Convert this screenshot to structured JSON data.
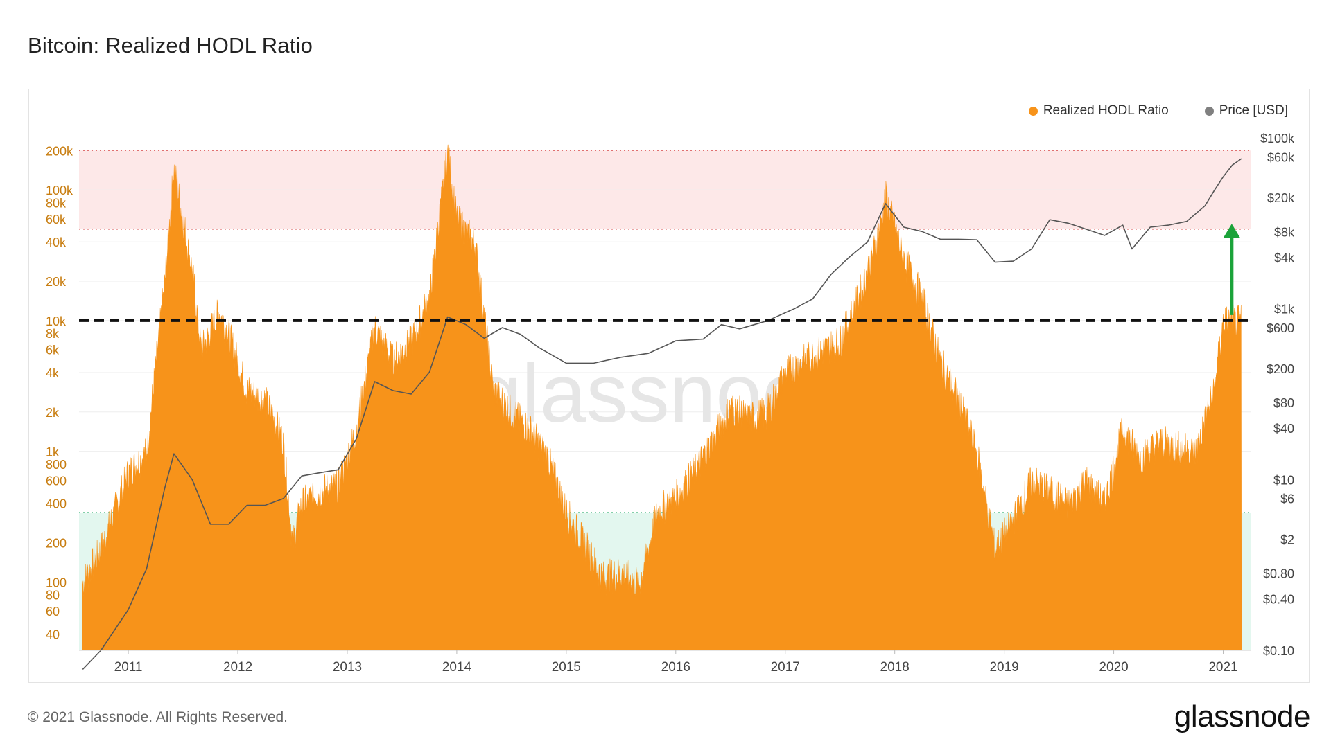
{
  "title": "Bitcoin: Realized HODL Ratio",
  "footer": "© 2021 Glassnode. All Rights Reserved.",
  "brand": "glassnode",
  "watermark": "glassnode",
  "colors": {
    "hodl": "#f7931a",
    "price": "#808080",
    "upper_band": "#fde8e8",
    "lower_band": "#e3f7ef",
    "arrow": "#1ba33a",
    "threshold_line": "#111111"
  },
  "chart_data": {
    "type": "area",
    "title": "Bitcoin: Realized HODL Ratio",
    "x_ticks": [
      "2011",
      "2012",
      "2013",
      "2014",
      "2015",
      "2016",
      "2017",
      "2018",
      "2019",
      "2020",
      "2021"
    ],
    "y_left": {
      "scale": "log",
      "range": [
        30,
        250000
      ],
      "tick_values": [
        40,
        60,
        80,
        100,
        200,
        400,
        600,
        800,
        1000,
        2000,
        4000,
        6000,
        8000,
        10000,
        20000,
        40000,
        60000,
        80000,
        100000,
        200000
      ],
      "tick_labels": [
        "40",
        "60",
        "80",
        "100",
        "200",
        "400",
        "600",
        "800",
        "1k",
        "2k",
        "4k",
        "6k",
        "8k",
        "10k",
        "20k",
        "40k",
        "60k",
        "80k",
        "100k",
        "200k"
      ]
    },
    "y_right": {
      "scale": "log",
      "range": [
        0.1,
        100000
      ],
      "tick_values": [
        0.1,
        0.4,
        0.8,
        2,
        6,
        10,
        40,
        80,
        200,
        600,
        1000,
        4000,
        8000,
        20000,
        60000,
        100000
      ],
      "tick_labels": [
        "$0.10",
        "$0.40",
        "$0.80",
        "$2",
        "$6",
        "$10",
        "$40",
        "$80",
        "$200",
        "$600",
        "$1k",
        "$4k",
        "$8k",
        "$20k",
        "$60k",
        "$100k"
      ]
    },
    "bands": [
      {
        "name": "upper",
        "from": 50000,
        "to": 200000
      },
      {
        "name": "lower",
        "from": 40,
        "to": 340
      }
    ],
    "threshold": 10000,
    "series": [
      {
        "name": "Realized HODL Ratio",
        "axis": "left",
        "points": [
          [
            "2010-08",
            100
          ],
          [
            "2010-10",
            180
          ],
          [
            "2011-01",
            700
          ],
          [
            "2011-03",
            1000
          ],
          [
            "2011-05",
            20000
          ],
          [
            "2011-06",
            150000
          ],
          [
            "2011-07",
            60000
          ],
          [
            "2011-08",
            25000
          ],
          [
            "2011-09",
            6000
          ],
          [
            "2011-11",
            12000
          ],
          [
            "2011-12",
            8000
          ],
          [
            "2012-02",
            3000
          ],
          [
            "2012-04",
            2500
          ],
          [
            "2012-06",
            1200
          ],
          [
            "2012-07",
            200
          ],
          [
            "2012-08",
            400
          ],
          [
            "2012-10",
            500
          ],
          [
            "2012-12",
            550
          ],
          [
            "2013-02",
            1500
          ],
          [
            "2013-04",
            9000
          ],
          [
            "2013-06",
            5000
          ],
          [
            "2013-08",
            7000
          ],
          [
            "2013-10",
            15000
          ],
          [
            "2013-12",
            200000
          ],
          [
            "2014-01",
            60000
          ],
          [
            "2014-03",
            40000
          ],
          [
            "2014-05",
            3000
          ],
          [
            "2014-07",
            2000
          ],
          [
            "2014-09",
            1500
          ],
          [
            "2014-11",
            900
          ],
          [
            "2015-01",
            350
          ],
          [
            "2015-03",
            200
          ],
          [
            "2015-05",
            110
          ],
          [
            "2015-07",
            120
          ],
          [
            "2015-09",
            100
          ],
          [
            "2015-11",
            350
          ],
          [
            "2016-01",
            450
          ],
          [
            "2016-03",
            700
          ],
          [
            "2016-05",
            1200
          ],
          [
            "2016-07",
            2200
          ],
          [
            "2016-09",
            1800
          ],
          [
            "2016-11",
            2000
          ],
          [
            "2017-01",
            4000
          ],
          [
            "2017-03",
            5000
          ],
          [
            "2017-05",
            6000
          ],
          [
            "2017-07",
            7000
          ],
          [
            "2017-09",
            15000
          ],
          [
            "2017-11",
            40000
          ],
          [
            "2017-12",
            90000
          ],
          [
            "2018-02",
            30000
          ],
          [
            "2018-04",
            15000
          ],
          [
            "2018-06",
            5000
          ],
          [
            "2018-08",
            2500
          ],
          [
            "2018-10",
            1000
          ],
          [
            "2018-12",
            180
          ],
          [
            "2019-02",
            300
          ],
          [
            "2019-04",
            600
          ],
          [
            "2019-06",
            500
          ],
          [
            "2019-08",
            400
          ],
          [
            "2019-10",
            600
          ],
          [
            "2019-12",
            400
          ],
          [
            "2020-02",
            1500
          ],
          [
            "2020-04",
            900
          ],
          [
            "2020-06",
            1200
          ],
          [
            "2020-08",
            1100
          ],
          [
            "2020-10",
            1000
          ],
          [
            "2020-12",
            3000
          ],
          [
            "2021-01",
            10000
          ],
          [
            "2021-03",
            10000
          ]
        ]
      },
      {
        "name": "Price [USD]",
        "axis": "right",
        "points": [
          [
            "2010-08",
            0.06
          ],
          [
            "2010-10",
            0.1
          ],
          [
            "2011-01",
            0.3
          ],
          [
            "2011-03",
            0.9
          ],
          [
            "2011-05",
            8
          ],
          [
            "2011-06",
            20
          ],
          [
            "2011-08",
            10
          ],
          [
            "2011-10",
            3
          ],
          [
            "2011-12",
            3
          ],
          [
            "2012-02",
            5
          ],
          [
            "2012-04",
            5
          ],
          [
            "2012-06",
            6
          ],
          [
            "2012-08",
            11
          ],
          [
            "2012-10",
            12
          ],
          [
            "2012-12",
            13
          ],
          [
            "2013-02",
            30
          ],
          [
            "2013-04",
            140
          ],
          [
            "2013-06",
            110
          ],
          [
            "2013-08",
            100
          ],
          [
            "2013-10",
            180
          ],
          [
            "2013-12",
            800
          ],
          [
            "2014-02",
            650
          ],
          [
            "2014-04",
            450
          ],
          [
            "2014-06",
            600
          ],
          [
            "2014-08",
            500
          ],
          [
            "2014-10",
            350
          ],
          [
            "2015-01",
            230
          ],
          [
            "2015-04",
            230
          ],
          [
            "2015-07",
            270
          ],
          [
            "2015-10",
            300
          ],
          [
            "2016-01",
            420
          ],
          [
            "2016-04",
            440
          ],
          [
            "2016-06",
            650
          ],
          [
            "2016-08",
            580
          ],
          [
            "2016-11",
            720
          ],
          [
            "2017-02",
            1000
          ],
          [
            "2017-04",
            1300
          ],
          [
            "2017-06",
            2500
          ],
          [
            "2017-08",
            4000
          ],
          [
            "2017-10",
            6000
          ],
          [
            "2017-12",
            17000
          ],
          [
            "2018-02",
            9000
          ],
          [
            "2018-04",
            8000
          ],
          [
            "2018-06",
            6500
          ],
          [
            "2018-08",
            6500
          ],
          [
            "2018-10",
            6400
          ],
          [
            "2018-12",
            3500
          ],
          [
            "2019-02",
            3600
          ],
          [
            "2019-04",
            5000
          ],
          [
            "2019-06",
            11000
          ],
          [
            "2019-08",
            10000
          ],
          [
            "2019-10",
            8500
          ],
          [
            "2019-12",
            7200
          ],
          [
            "2020-02",
            9500
          ],
          [
            "2020-03",
            5000
          ],
          [
            "2020-05",
            9000
          ],
          [
            "2020-07",
            9500
          ],
          [
            "2020-09",
            10500
          ],
          [
            "2020-11",
            16000
          ],
          [
            "2020-12",
            24000
          ],
          [
            "2021-01",
            35000
          ],
          [
            "2021-02",
            48000
          ],
          [
            "2021-03",
            57000
          ]
        ]
      }
    ],
    "legend": [
      "Realized HODL Ratio",
      "Price [USD]"
    ],
    "legend_position": "top-right",
    "annotations": [
      {
        "type": "horizontal-dashed-line",
        "value": 10000
      },
      {
        "type": "arrow-up",
        "from": 10000,
        "to": 55000,
        "date": "2021-03"
      }
    ]
  }
}
